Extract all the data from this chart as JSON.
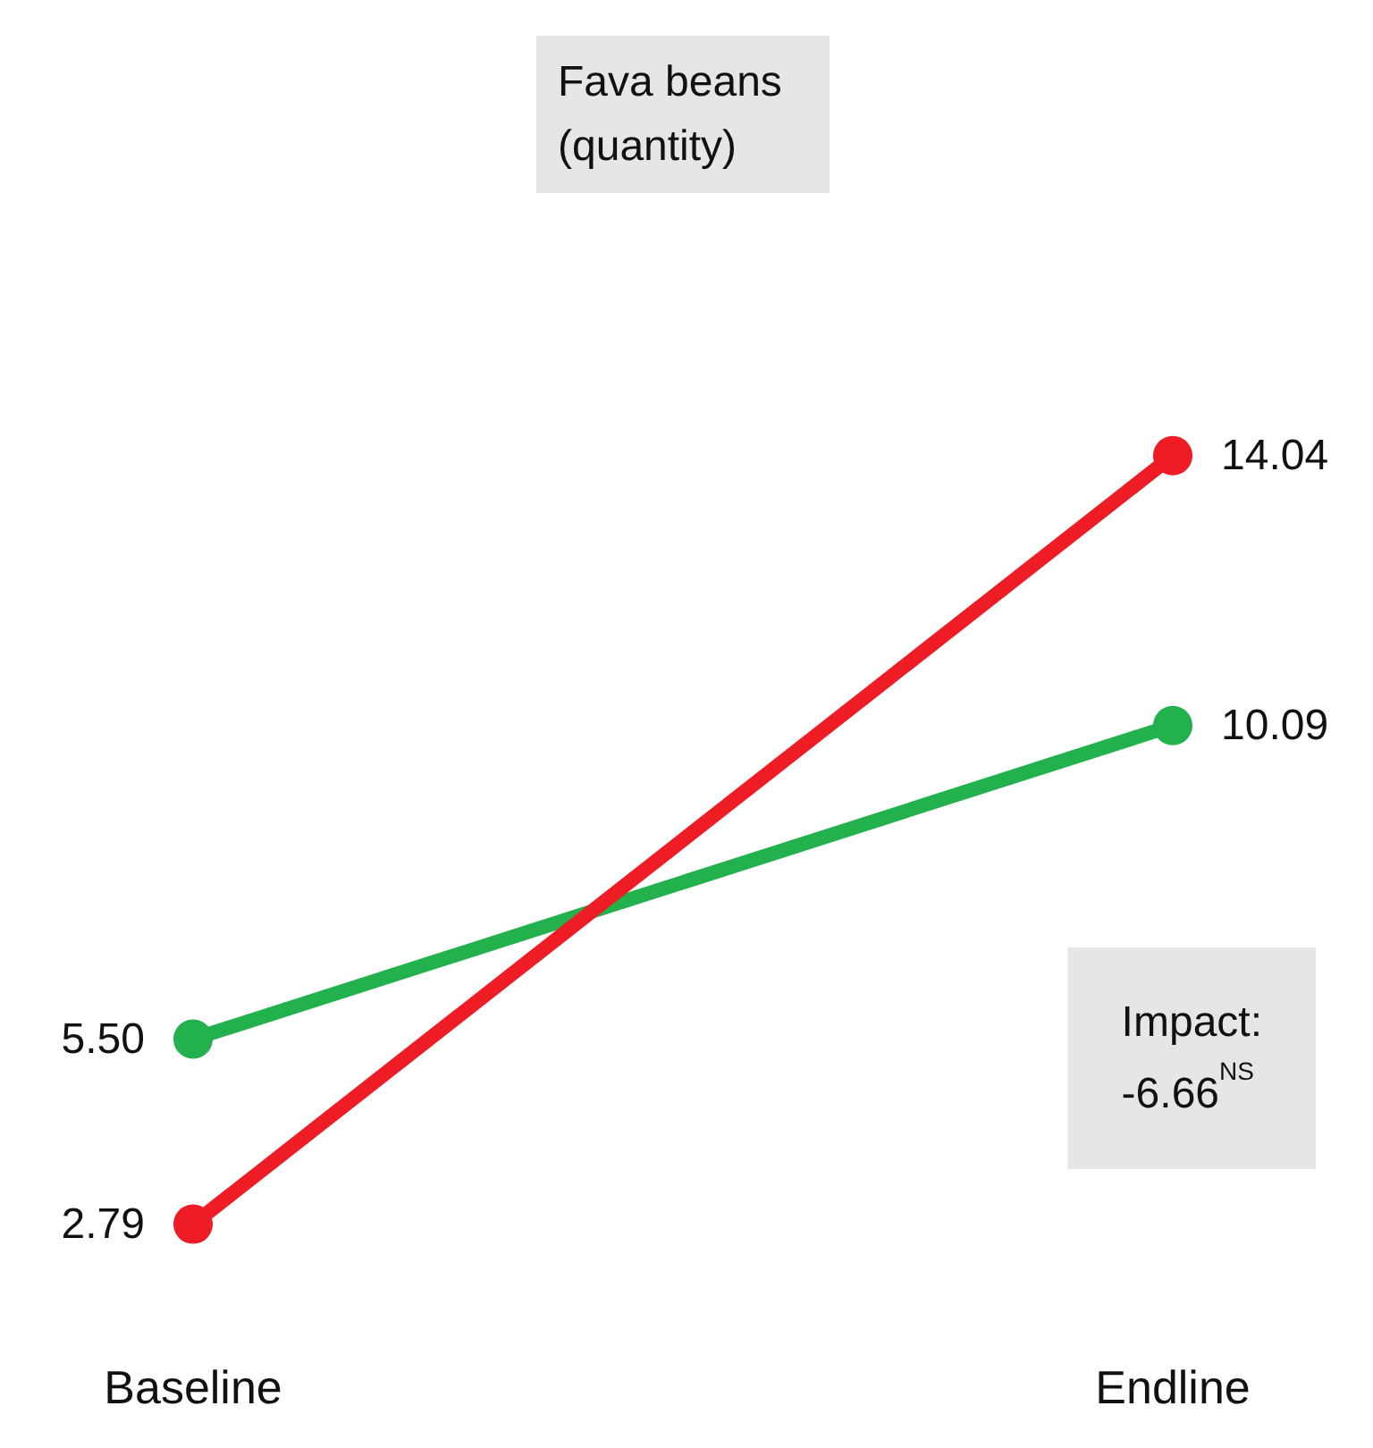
{
  "chart_data": {
    "type": "line",
    "title": "Fava beans (quantity)",
    "categories": [
      "Baseline",
      "Endline"
    ],
    "series": [
      {
        "color": "#22b14c",
        "values": [
          5.5,
          10.09
        ],
        "value_labels": [
          "5.50",
          "10.09"
        ]
      },
      {
        "color": "#ee1c25",
        "values": [
          2.79,
          14.04
        ],
        "value_labels": [
          "2.79",
          "14.04"
        ]
      }
    ],
    "annotations": [
      "Impact:\n-6.66$^{NS}$"
    ],
    "marker": "circle",
    "line_style": "solid"
  }
}
